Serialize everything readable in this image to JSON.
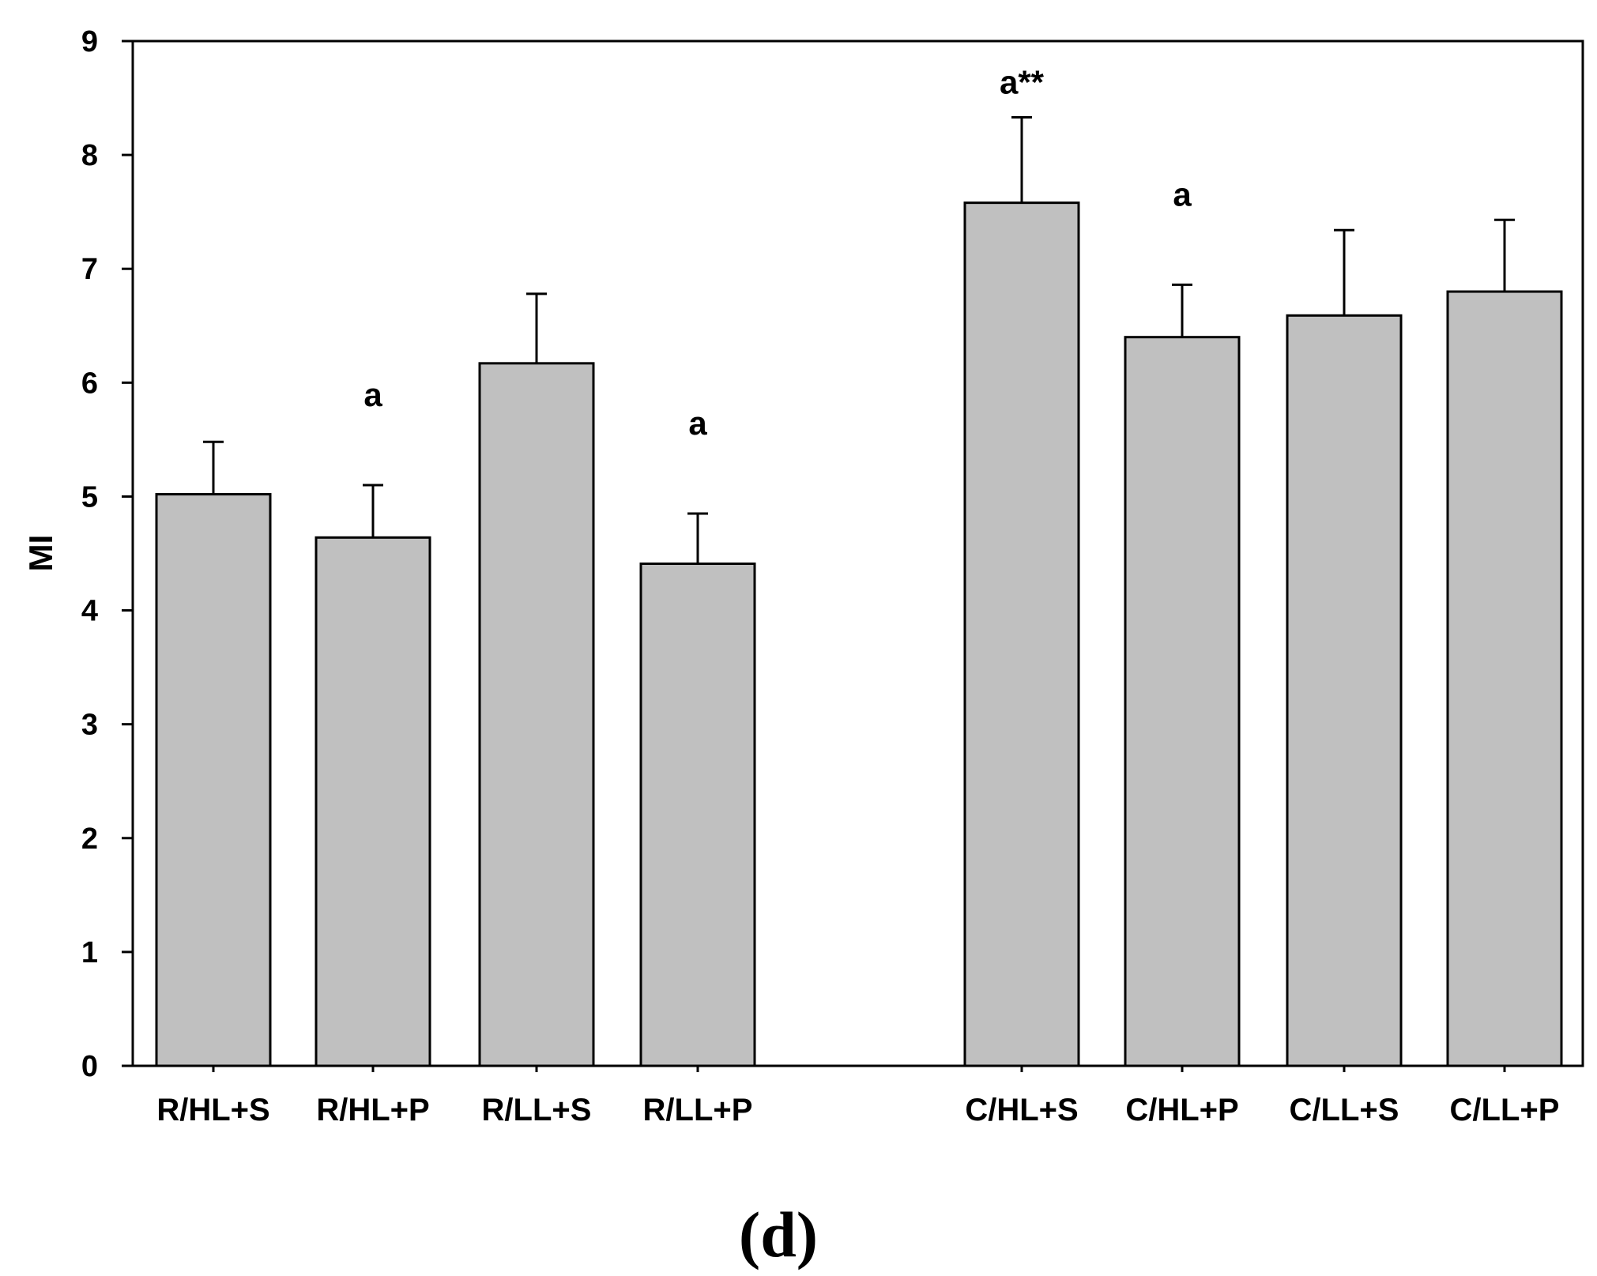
{
  "chart_data": {
    "type": "bar",
    "title": "",
    "xlabel": "",
    "ylabel": "MI",
    "ylim": [
      0,
      9
    ],
    "yticks": [
      "0",
      "1",
      "2",
      "3",
      "4",
      "5",
      "6",
      "7",
      "8",
      "9"
    ],
    "grid": false,
    "legend": "none",
    "categories": [
      "R/HL+S",
      "R/HL+P",
      "R/LL+S",
      "R/LL+P",
      "C/HL+S",
      "C/HL+P",
      "C/LL+S",
      "C/LL+P"
    ],
    "series": [
      {
        "name": "MI",
        "color": "#c0c0c0",
        "values": [
          5.02,
          4.64,
          6.17,
          4.41,
          7.58,
          6.4,
          6.59,
          6.8
        ],
        "errors": [
          0.46,
          0.46,
          0.61,
          0.44,
          0.75,
          0.46,
          0.75,
          0.63
        ],
        "annotations": [
          "",
          "a",
          "",
          "a",
          "a**",
          "a",
          "",
          ""
        ]
      }
    ],
    "caption": "(d)"
  }
}
